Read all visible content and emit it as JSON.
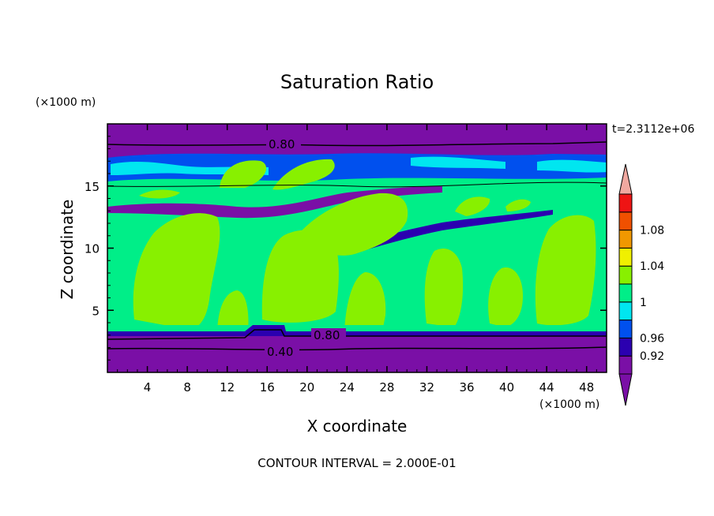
{
  "chart_data": {
    "type": "heatmap",
    "title": "Saturation Ratio",
    "xlabel": "X coordinate",
    "ylabel": "Z coordinate",
    "x_unit": "(×1000 m)",
    "y_unit": "(×1000 m)",
    "xlim": [
      0,
      50
    ],
    "ylim": [
      0,
      20
    ],
    "x_ticks": [
      "4",
      "8",
      "12",
      "16",
      "20",
      "24",
      "28",
      "32",
      "36",
      "40",
      "44",
      "48"
    ],
    "y_ticks": [
      "5",
      "10",
      "15"
    ],
    "time_label": "t=2.3112e+06",
    "footer": "CONTOUR INTERVAL = 2.000E-01",
    "contour_labels": [
      "0.80",
      "0.80",
      "0.40"
    ],
    "colorbar": {
      "labels": [
        "1.08",
        "1.04",
        "1",
        "0.96",
        "0.92"
      ],
      "bins": [
        {
          "color": "#7a0fa6"
        },
        {
          "color": "#2b00b0"
        },
        {
          "color": "#0050ee"
        },
        {
          "color": "#00e6f0"
        },
        {
          "color": "#00ee88"
        },
        {
          "color": "#88f000"
        },
        {
          "color": "#f0f000"
        },
        {
          "color": "#f09800"
        },
        {
          "color": "#f05000"
        },
        {
          "color": "#ee1414"
        }
      ],
      "under_color": "#7a0fa6",
      "over_color": "#f0a8a0"
    }
  }
}
